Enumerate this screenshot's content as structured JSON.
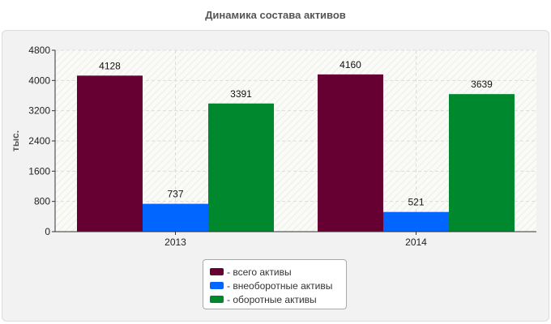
{
  "chart_data": {
    "type": "bar",
    "title": "Динамика состава активов",
    "ylabel": "тыс.",
    "xlabel": "",
    "categories": [
      "2013",
      "2014"
    ],
    "ylim": [
      0,
      4800
    ],
    "yticks": [
      0,
      800,
      1600,
      2400,
      3200,
      4000,
      4800
    ],
    "series": [
      {
        "name": "всего активы",
        "color": "#660033",
        "values": [
          4128,
          4160
        ]
      },
      {
        "name": "внеоборотные активы",
        "color": "#0066ff",
        "values": [
          737,
          521
        ]
      },
      {
        "name": "оборотные активы",
        "color": "#00882e",
        "values": [
          3391,
          3639
        ]
      }
    ],
    "grid": true,
    "legend_position": "bottom"
  }
}
